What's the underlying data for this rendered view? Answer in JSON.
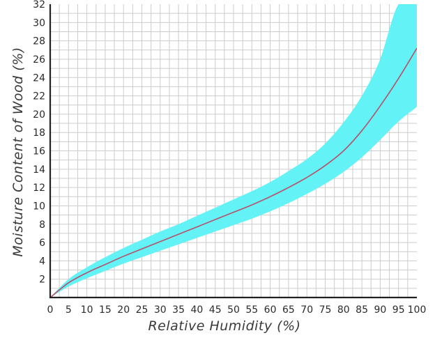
{
  "chart_data": {
    "type": "area",
    "title": "",
    "xlabel": "Relative Humidity (%)",
    "ylabel": "Moisture Content of Wood (%)",
    "xlim": [
      0,
      100
    ],
    "ylim": [
      0,
      32
    ],
    "x_ticks": [
      0,
      5,
      10,
      15,
      20,
      25,
      30,
      35,
      40,
      45,
      50,
      55,
      60,
      65,
      70,
      75,
      80,
      85,
      90,
      95,
      100
    ],
    "y_ticks": [
      2,
      4,
      6,
      8,
      10,
      12,
      14,
      16,
      18,
      20,
      22,
      24,
      26,
      28,
      30,
      32
    ],
    "grid": true,
    "x": [
      0,
      5,
      10,
      15,
      20,
      25,
      30,
      35,
      40,
      45,
      50,
      55,
      60,
      65,
      70,
      75,
      80,
      85,
      90,
      95,
      100
    ],
    "series": [
      {
        "type": "line",
        "values": [
          0,
          1.6,
          2.7,
          3.6,
          4.5,
          5.3,
          6.1,
          6.9,
          7.7,
          8.5,
          9.3,
          10.1,
          11.0,
          12.0,
          13.1,
          14.4,
          16.0,
          18.2,
          20.9,
          23.9,
          27.2
        ]
      },
      {
        "type": "band",
        "lower": [
          0,
          1.2,
          2.1,
          2.9,
          3.7,
          4.4,
          5.1,
          5.8,
          6.5,
          7.2,
          7.9,
          8.6,
          9.4,
          10.3,
          11.3,
          12.4,
          13.7,
          15.3,
          17.2,
          19.2,
          20.8
        ],
        "upper": [
          0,
          2.0,
          3.3,
          4.4,
          5.4,
          6.3,
          7.2,
          8.0,
          8.9,
          9.8,
          10.7,
          11.6,
          12.6,
          13.8,
          15.1,
          16.8,
          19.1,
          22.0,
          26.0,
          32.0,
          32.0
        ]
      }
    ],
    "colors": {
      "band": "#63F2F5",
      "line": "#B8506A",
      "grid": "#cccccc",
      "axis": "#222222"
    }
  }
}
